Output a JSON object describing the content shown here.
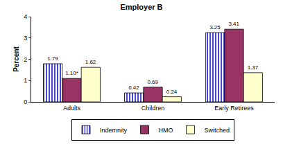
{
  "chart_data": {
    "type": "bar",
    "title": "Employer B",
    "y_label": "Percent",
    "categories": [
      "Adults",
      "Children",
      "Early Retirees"
    ],
    "series": [
      {
        "name": "Indemnity",
        "color": "#3333cc",
        "marker": "vertical_stripes",
        "values": [
          1.79,
          0.42,
          3.25
        ],
        "value_labels": [
          "1.79",
          "0.42",
          "3.25"
        ]
      },
      {
        "name": "HMO",
        "color": "#993366",
        "values": [
          1.1,
          0.69,
          3.41
        ],
        "value_labels": [
          "1.10*",
          "0.69",
          "3.41"
        ]
      },
      {
        "name": "Switched",
        "color": "#ffffcc",
        "values": [
          1.62,
          0.24,
          1.37
        ],
        "value_labels": [
          "1.62",
          "0.24",
          "1.37"
        ]
      }
    ],
    "ylim": [
      0,
      4
    ],
    "yticks": [
      0,
      1,
      2,
      3,
      4
    ],
    "grid": false,
    "legend": "bottom",
    "data_labels": true
  }
}
